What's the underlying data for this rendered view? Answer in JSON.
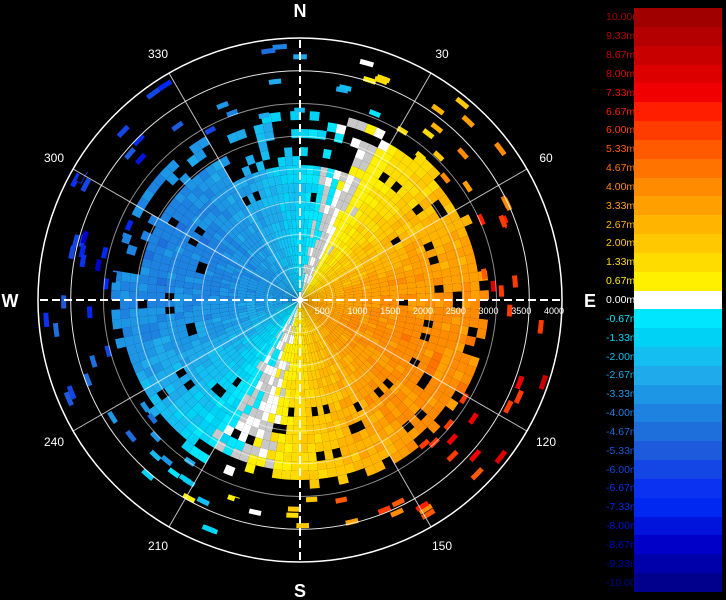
{
  "chart_data": {
    "type": "heatmap",
    "title": "",
    "projection": "polar",
    "cardinals": [
      "N",
      "E",
      "S",
      "W"
    ],
    "azimuth_labels": [
      "30",
      "60",
      "120",
      "150",
      "210",
      "240",
      "300",
      "330"
    ],
    "range_labels": [
      "500",
      "1000",
      "1500",
      "2000",
      "2500",
      "3000",
      "3500",
      "4000"
    ],
    "range_max": 4000,
    "grid": true,
    "colorbar": {
      "position": "right",
      "entries": [
        {
          "label": "10.00m/s",
          "value": 10.0,
          "color": "#a00000"
        },
        {
          "label": "9.33m/s",
          "value": 9.33,
          "color": "#b40000"
        },
        {
          "label": "8.67m/s",
          "value": 8.67,
          "color": "#c80000"
        },
        {
          "label": "8.00m/s",
          "value": 8.0,
          "color": "#dc0000"
        },
        {
          "label": "7.33m/s",
          "value": 7.33,
          "color": "#f00000"
        },
        {
          "label": "6.67m/s",
          "value": 6.67,
          "color": "#ff1e00"
        },
        {
          "label": "6.00m/s",
          "value": 6.0,
          "color": "#ff3c00"
        },
        {
          "label": "5.33m/s",
          "value": 5.33,
          "color": "#ff5a00"
        },
        {
          "label": "4.67m/s",
          "value": 4.67,
          "color": "#ff7300"
        },
        {
          "label": "4.00m/s",
          "value": 4.0,
          "color": "#ff8c00"
        },
        {
          "label": "3.33m/s",
          "value": 3.33,
          "color": "#ffa000"
        },
        {
          "label": "2.67m/s",
          "value": 2.67,
          "color": "#ffb400"
        },
        {
          "label": "2.00m/s",
          "value": 2.0,
          "color": "#ffc800"
        },
        {
          "label": "1.33m/s",
          "value": 1.33,
          "color": "#ffdc00"
        },
        {
          "label": "0.67m/s",
          "value": 0.67,
          "color": "#fff000"
        },
        {
          "label": "0.00m/s",
          "value": 0.0,
          "color": "#ffffff"
        },
        {
          "label": "-0.67m/s",
          "value": -0.67,
          "color": "#00e6ff"
        },
        {
          "label": "-1.33m/s",
          "value": -1.33,
          "color": "#00d2f5"
        },
        {
          "label": "-2.00m/s",
          "value": -2.0,
          "color": "#14bef0"
        },
        {
          "label": "-2.67m/s",
          "value": -2.67,
          "color": "#1eaaeb"
        },
        {
          "label": "-3.33m/s",
          "value": -3.33,
          "color": "#1e96e6"
        },
        {
          "label": "-4.00m/s",
          "value": -4.0,
          "color": "#1e82e1"
        },
        {
          "label": "-4.67m/s",
          "value": -4.67,
          "color": "#1e6edc"
        },
        {
          "label": "-5.33m/s",
          "value": -5.33,
          "color": "#1e5adc"
        },
        {
          "label": "-6.00m/s",
          "value": -6.0,
          "color": "#1446e6"
        },
        {
          "label": "-6.67m/s",
          "value": -6.67,
          "color": "#0a32f0"
        },
        {
          "label": "-7.33m/s",
          "value": -7.33,
          "color": "#0028f0"
        },
        {
          "label": "-8.00m/s",
          "value": -8.0,
          "color": "#0014dc"
        },
        {
          "label": "-8.67m/s",
          "value": -8.67,
          "color": "#0000c8"
        },
        {
          "label": "-9.33m/s",
          "value": -9.33,
          "color": "#0000aa"
        },
        {
          "label": "-10.00m/s",
          "value": -10.0,
          "color": "#00008c"
        }
      ]
    },
    "velocity_field": {
      "zero_line_azimuth_deg": 200,
      "inner_peak_m_s": 4.0,
      "echo_extent_m": [
        0,
        2800
      ],
      "sparse_extent_m": [
        2800,
        3900
      ]
    }
  }
}
